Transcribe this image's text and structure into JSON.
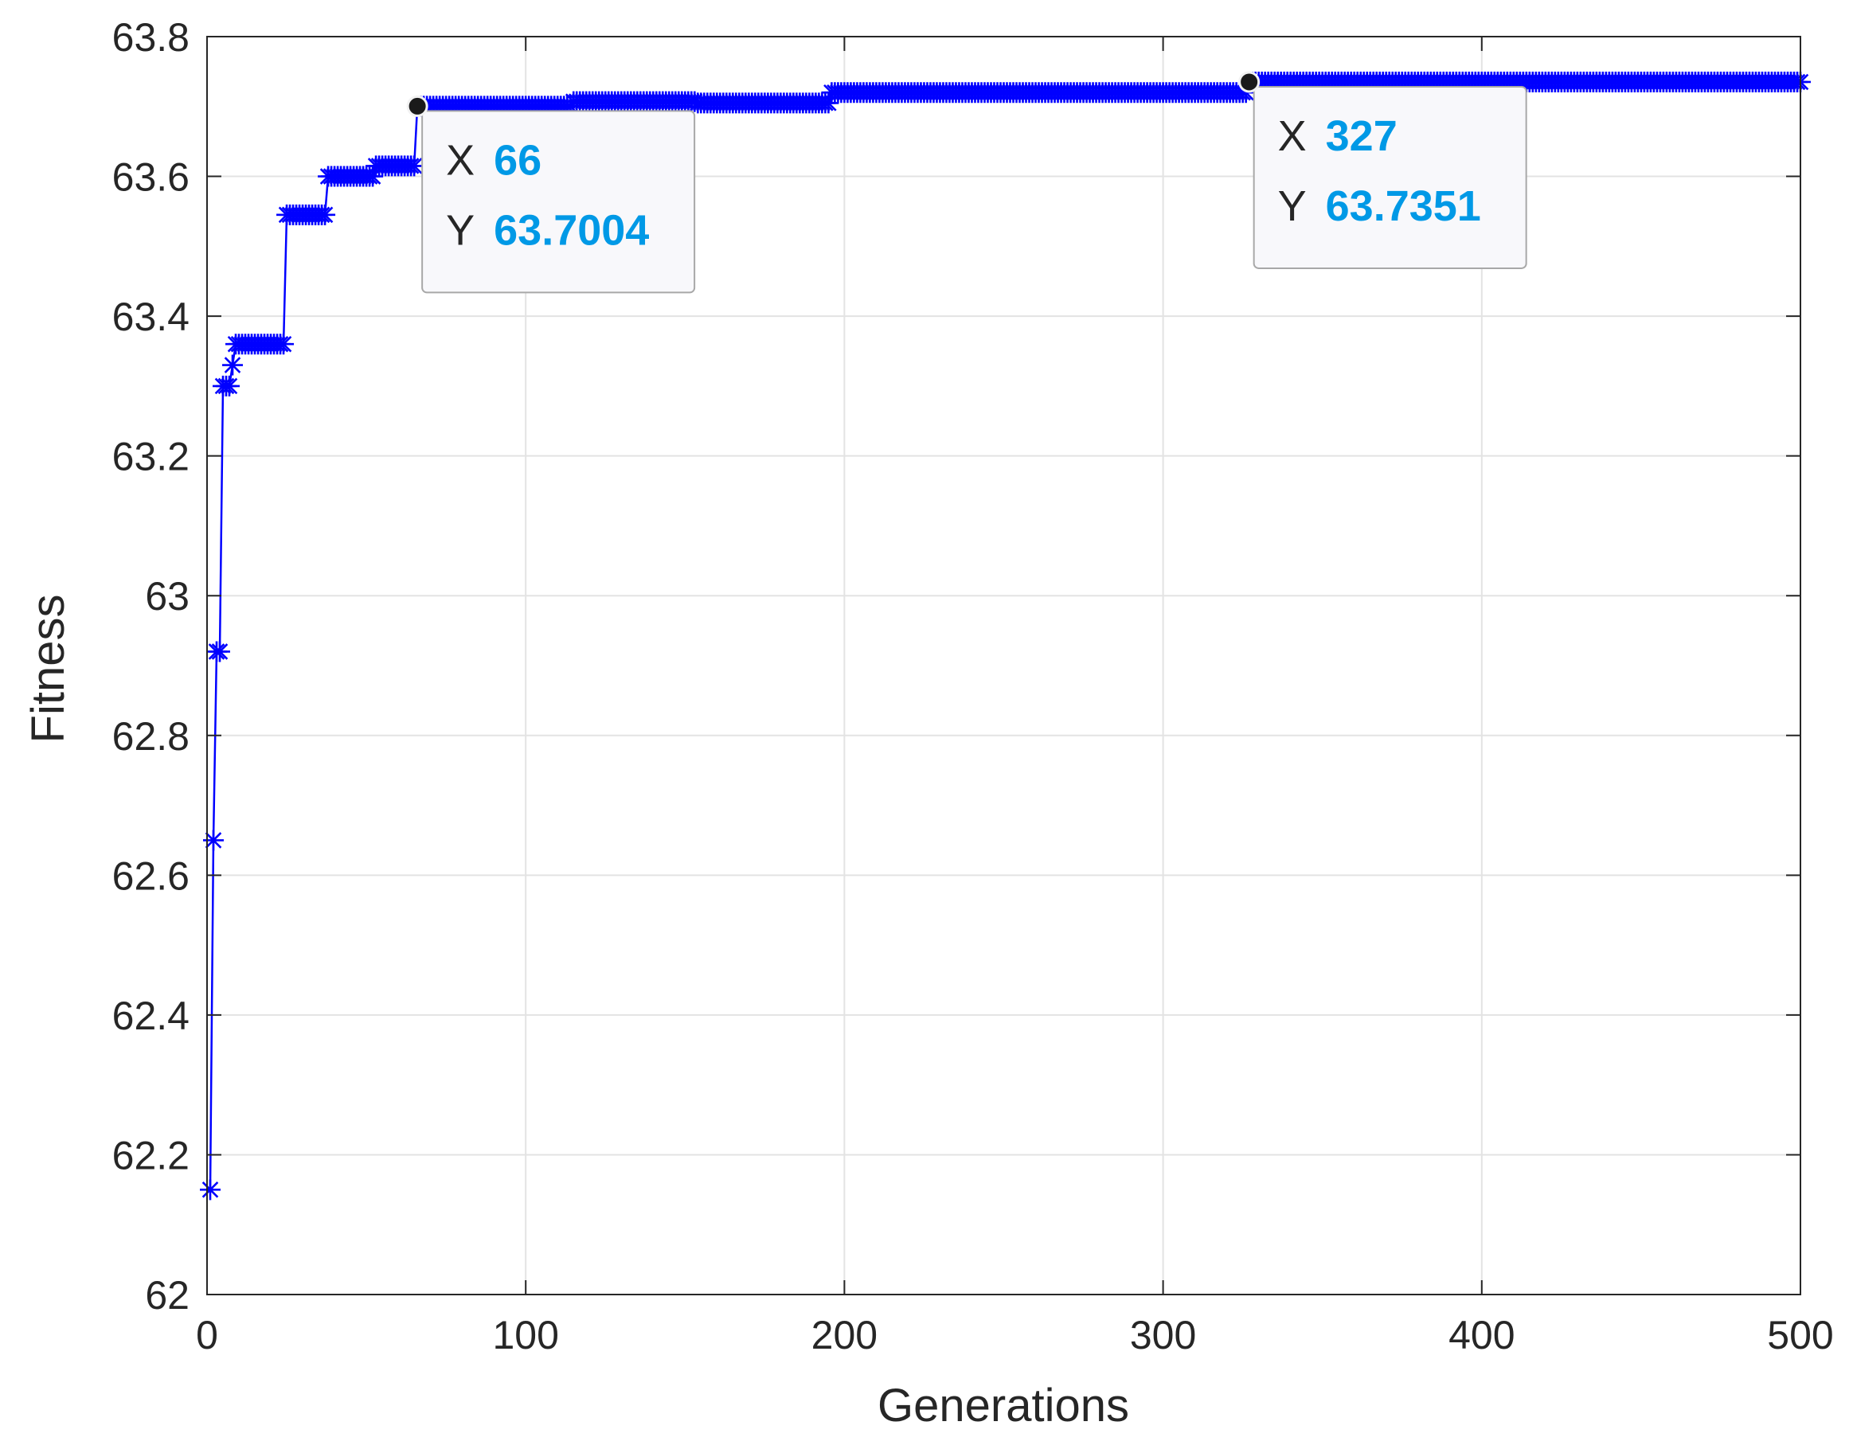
{
  "chart_data": {
    "type": "line",
    "title": "",
    "xlabel": "Generations",
    "ylabel": "Fitness",
    "xlim": [
      0,
      500
    ],
    "ylim": [
      62,
      63.8
    ],
    "xticks": [
      0,
      100,
      200,
      300,
      400,
      500
    ],
    "xtick_labels": [
      "0",
      "100",
      "200",
      "300",
      "400",
      "500"
    ],
    "yticks": [
      62,
      62.2,
      62.4,
      62.6,
      62.8,
      63,
      63.2,
      63.4,
      63.6,
      63.8
    ],
    "ytick_labels": [
      "62",
      "62.2",
      "62.4",
      "62.6",
      "62.8",
      "63",
      "63.2",
      "63.4",
      "63.6",
      "63.8"
    ],
    "grid": true,
    "marker": "asterisk",
    "series_color": "#0000ff",
    "segments": [
      {
        "from": 1,
        "to": 1,
        "y": 62.15
      },
      {
        "from": 2,
        "to": 2,
        "y": 62.65
      },
      {
        "from": 3,
        "to": 3,
        "y": 62.92
      },
      {
        "from": 4,
        "to": 4,
        "y": 62.92
      },
      {
        "from": 5,
        "to": 5,
        "y": 63.3
      },
      {
        "from": 6,
        "to": 6,
        "y": 63.3
      },
      {
        "from": 7,
        "to": 7,
        "y": 63.3
      },
      {
        "from": 8,
        "to": 8,
        "y": 63.33
      },
      {
        "from": 9,
        "to": 24,
        "y": 63.36
      },
      {
        "from": 25,
        "to": 37,
        "y": 63.545
      },
      {
        "from": 38,
        "to": 52,
        "y": 63.6
      },
      {
        "from": 53,
        "to": 65,
        "y": 63.615
      },
      {
        "from": 66,
        "to": 114,
        "y": 63.7004
      },
      {
        "from": 115,
        "to": 153,
        "y": 63.707
      },
      {
        "from": 154,
        "to": 195,
        "y": 63.705
      },
      {
        "from": 196,
        "to": 326,
        "y": 63.72
      },
      {
        "from": 327,
        "to": 500,
        "y": 63.7351
      }
    ],
    "datatips": [
      {
        "x": 66,
        "y": 63.7004,
        "x_label": "X",
        "y_label": "Y",
        "x_value": "66",
        "y_value": "63.7004"
      },
      {
        "x": 327,
        "y": 63.7351,
        "x_label": "X",
        "y_label": "Y",
        "x_value": "327",
        "y_value": "63.7351"
      }
    ],
    "datatip_value_color": "#0099e6"
  }
}
